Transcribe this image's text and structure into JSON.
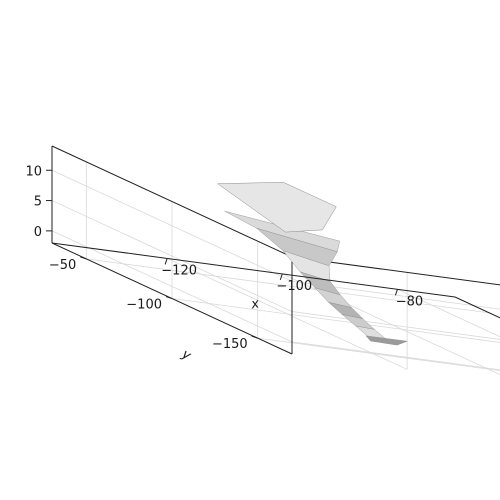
{
  "chart_data": {
    "type": "surface",
    "title": "",
    "xlabel": "x",
    "ylabel": "y",
    "zlabel": "",
    "xlim": [
      -140,
      -70
    ],
    "ylim": [
      -170,
      -30
    ],
    "zlim": [
      -2,
      14
    ],
    "x_ticks": [
      {
        "value": -80,
        "label": "−80"
      },
      {
        "value": -100,
        "label": "−100"
      },
      {
        "value": -120,
        "label": "−120"
      }
    ],
    "y_ticks": [
      {
        "value": -50,
        "label": "−50"
      },
      {
        "value": -100,
        "label": "−100"
      },
      {
        "value": -150,
        "label": "−150"
      }
    ],
    "z_ticks": [
      {
        "value": 10,
        "label": "10"
      },
      {
        "value": 5,
        "label": "5"
      },
      {
        "value": 0,
        "label": "0"
      }
    ],
    "grid": true,
    "surface_color": "#cfcfcf",
    "surface_outline": "#8a8a8a"
  }
}
